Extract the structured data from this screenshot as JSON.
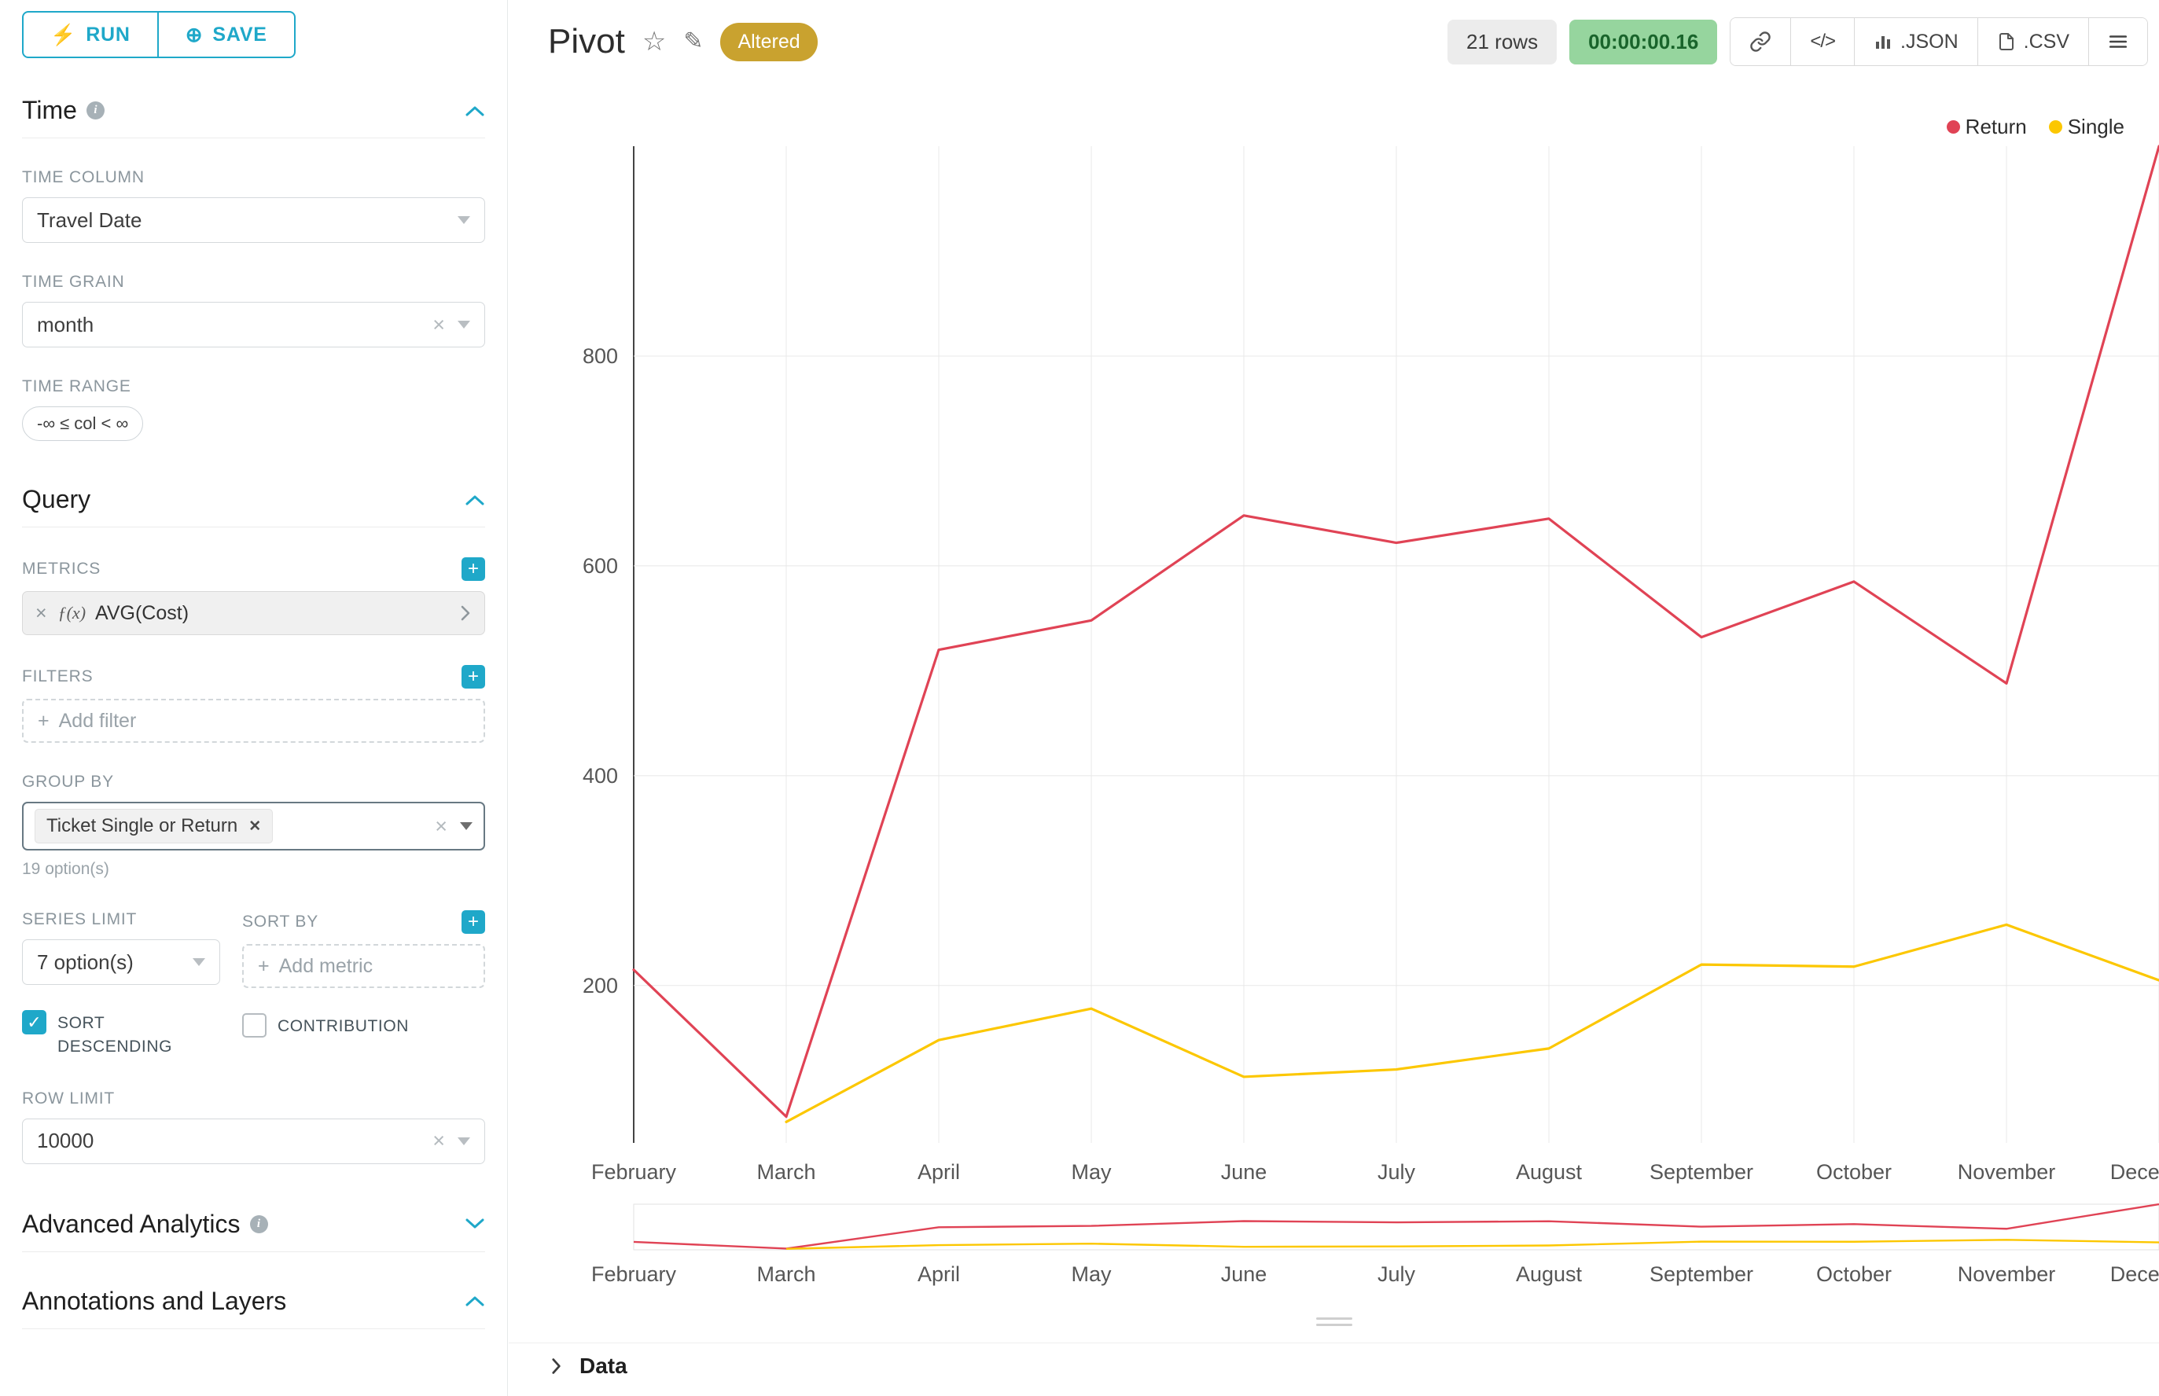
{
  "app": {
    "accent_color": "#1FA8C9"
  },
  "icons": {
    "bolt": "⚡",
    "plus_circle": "⊕",
    "star": "☆",
    "edit": "✎",
    "code": "</>",
    "clear": "×",
    "remove": "✕",
    "add": "+",
    "check": "✓"
  },
  "sidebar": {
    "run_button": {
      "label": "RUN"
    },
    "save_button": {
      "label": "SAVE"
    },
    "time_section": {
      "title": "Time",
      "time_column": {
        "label": "TIME COLUMN",
        "value": "Travel Date"
      },
      "time_grain": {
        "label": "TIME GRAIN",
        "value": "month"
      },
      "time_range": {
        "label": "TIME RANGE",
        "value": "-∞ ≤ col < ∞"
      }
    },
    "query_section": {
      "title": "Query",
      "metrics": {
        "label": "METRICS",
        "fx": "ƒ(x)",
        "value": "AVG(Cost)"
      },
      "filters": {
        "label": "FILTERS",
        "placeholder": "Add filter"
      },
      "group_by": {
        "label": "GROUP BY",
        "tag": "Ticket Single or Return",
        "hint": "19 option(s)"
      },
      "series_limit": {
        "label": "SERIES LIMIT",
        "value": "7 option(s)"
      },
      "sort_by": {
        "label": "SORT BY",
        "placeholder": "Add metric"
      },
      "sort_descending": {
        "label": "SORT DESCENDING",
        "checked": true
      },
      "contribution": {
        "label": "CONTRIBUTION",
        "checked": false
      },
      "row_limit": {
        "label": "ROW LIMIT",
        "value": "10000"
      }
    },
    "advanced_analytics": {
      "title": "Advanced Analytics"
    },
    "annotations": {
      "title": "Annotations and Layers"
    }
  },
  "header": {
    "title": "Pivot",
    "altered_badge": "Altered",
    "rows_badge": "21 rows",
    "timer_badge": "00:00:00.16",
    "export_json_label": ".JSON",
    "export_csv_label": ".CSV"
  },
  "data_panel": {
    "title": "Data"
  },
  "chart_data": {
    "type": "line",
    "title": "Pivot",
    "categories": [
      "February",
      "March",
      "April",
      "May",
      "June",
      "July",
      "August",
      "September",
      "October",
      "November",
      "December"
    ],
    "series": [
      {
        "name": "Return",
        "color": "#E04355",
        "values": [
          215,
          75,
          520,
          548,
          648,
          622,
          645,
          532,
          585,
          488,
          1000
        ]
      },
      {
        "name": "Single",
        "color": "#FCC700",
        "values": [
          null,
          70,
          148,
          178,
          113,
          120,
          140,
          220,
          218,
          258,
          205
        ]
      }
    ],
    "xlabel": "",
    "ylabel": "",
    "yticks": [
      200,
      400,
      600,
      800
    ],
    "ylim": [
      50,
      1000
    ],
    "grid": true,
    "legend_position": "top-right",
    "has_range_selector": true
  }
}
